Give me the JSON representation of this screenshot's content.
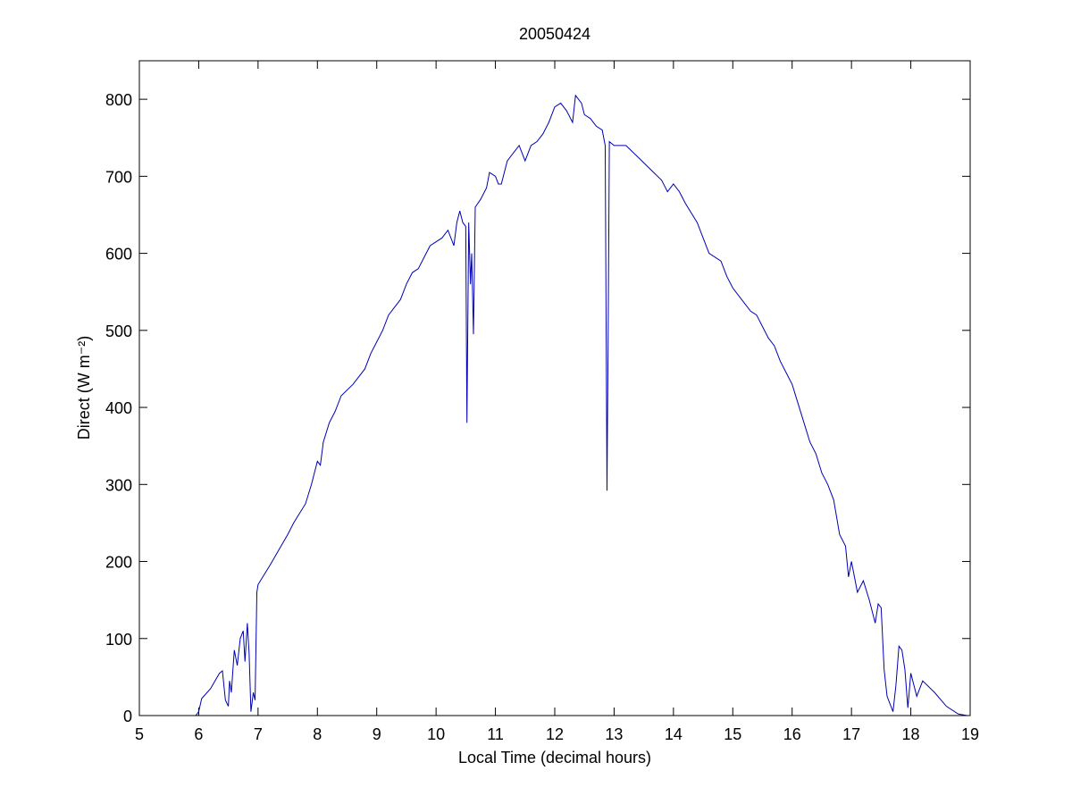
{
  "chart_data": {
    "type": "line",
    "title": "20050424",
    "xlabel": "Local Time (decimal hours)",
    "ylabel": "Direct (W m⁻²)",
    "xlim": [
      5,
      19
    ],
    "xticks": [
      5,
      6,
      7,
      8,
      9,
      10,
      11,
      12,
      13,
      14,
      15,
      16,
      17,
      18,
      19
    ],
    "ylim": [
      0,
      850
    ],
    "yticks": [
      0,
      100,
      200,
      300,
      400,
      500,
      600,
      700,
      800
    ],
    "box": true,
    "series": [
      {
        "color": "#0000b4",
        "x": [
          5.8,
          5.95,
          6.0,
          6.05,
          6.2,
          6.35,
          6.4,
          6.45,
          6.5,
          6.52,
          6.55,
          6.6,
          6.65,
          6.7,
          6.75,
          6.78,
          6.82,
          6.85,
          6.88,
          6.92,
          6.95,
          6.98,
          7.0,
          7.2,
          7.5,
          7.6,
          7.8,
          7.9,
          8.0,
          8.05,
          8.1,
          8.2,
          8.3,
          8.4,
          8.6,
          8.8,
          8.9,
          9.0,
          9.1,
          9.2,
          9.3,
          9.4,
          9.5,
          9.6,
          9.7,
          9.8,
          9.9,
          10.0,
          10.1,
          10.2,
          10.3,
          10.35,
          10.4,
          10.45,
          10.5,
          10.52,
          10.55,
          10.58,
          10.6,
          10.63,
          10.66,
          10.75,
          10.85,
          10.9,
          11.0,
          11.05,
          11.1,
          11.2,
          11.3,
          11.4,
          11.5,
          11.6,
          11.7,
          11.8,
          11.9,
          12.0,
          12.1,
          12.2,
          12.3,
          12.35,
          12.45,
          12.5,
          12.6,
          12.7,
          12.8,
          12.85,
          12.88,
          12.9,
          12.92,
          13.0,
          13.2,
          13.4,
          13.6,
          13.8,
          13.9,
          14.0,
          14.1,
          14.2,
          14.4,
          14.5,
          14.6,
          14.8,
          14.9,
          15.0,
          15.1,
          15.2,
          15.3,
          15.4,
          15.5,
          15.6,
          15.7,
          15.8,
          15.9,
          16.0,
          16.2,
          16.3,
          16.4,
          16.5,
          16.6,
          16.7,
          16.8,
          16.9,
          16.95,
          17.0,
          17.1,
          17.2,
          17.3,
          17.4,
          17.45,
          17.5,
          17.55,
          17.6,
          17.7,
          17.75,
          17.8,
          17.85,
          17.9,
          17.95,
          18.0,
          18.1,
          18.2,
          18.4,
          18.6,
          18.8,
          18.95
        ],
        "values": [
          0,
          0,
          5,
          22,
          35,
          55,
          58,
          20,
          12,
          45,
          30,
          85,
          65,
          100,
          110,
          70,
          120,
          80,
          5,
          30,
          20,
          160,
          170,
          195,
          235,
          250,
          275,
          300,
          330,
          325,
          355,
          380,
          395,
          415,
          430,
          450,
          470,
          485,
          500,
          520,
          530,
          540,
          560,
          575,
          580,
          595,
          610,
          615,
          620,
          630,
          610,
          640,
          655,
          640,
          635,
          380,
          640,
          560,
          600,
          495,
          660,
          670,
          685,
          705,
          700,
          690,
          690,
          720,
          730,
          740,
          720,
          740,
          745,
          755,
          770,
          790,
          795,
          785,
          770,
          805,
          795,
          780,
          775,
          765,
          760,
          740,
          292,
          495,
          745,
          740,
          740,
          725,
          710,
          695,
          680,
          690,
          680,
          665,
          640,
          620,
          600,
          590,
          570,
          555,
          545,
          535,
          525,
          520,
          505,
          490,
          480,
          460,
          445,
          430,
          380,
          355,
          340,
          315,
          300,
          280,
          235,
          220,
          180,
          200,
          160,
          175,
          150,
          120,
          145,
          140,
          60,
          25,
          5,
          40,
          90,
          85,
          60,
          10,
          55,
          25,
          45,
          30,
          12,
          2,
          0
        ]
      }
    ]
  }
}
